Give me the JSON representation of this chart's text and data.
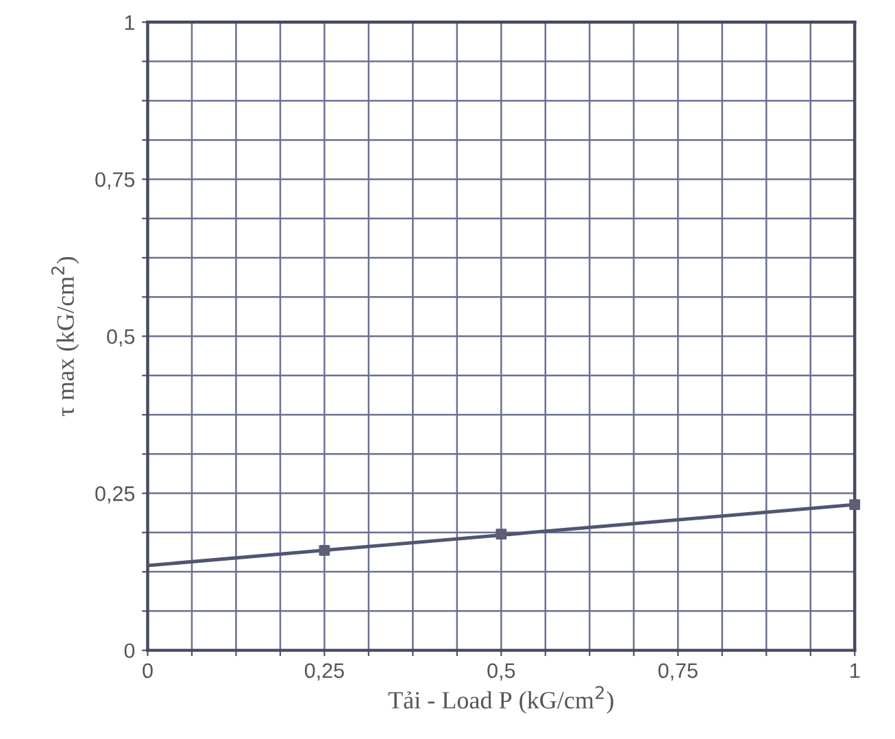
{
  "chart_data": {
    "type": "scatter",
    "xlabel": "Tải - Load P (kG/cm$^{2}$)",
    "ylabel": "τ max (kG/cm$^{2}$)",
    "xlim": [
      0,
      1
    ],
    "ylim": [
      0,
      1
    ],
    "xticks": [
      {
        "value": 0,
        "label": "0"
      },
      {
        "value": 0.0625,
        "label": null
      },
      {
        "value": 0.125,
        "label": null
      },
      {
        "value": 0.1875,
        "label": null
      },
      {
        "value": 0.25,
        "label": "0,25"
      },
      {
        "value": 0.3125,
        "label": null
      },
      {
        "value": 0.375,
        "label": null
      },
      {
        "value": 0.4375,
        "label": null
      },
      {
        "value": 0.5,
        "label": "0,5"
      },
      {
        "value": 0.5625,
        "label": null
      },
      {
        "value": 0.625,
        "label": null
      },
      {
        "value": 0.6875,
        "label": null
      },
      {
        "value": 0.75,
        "label": "0,75"
      },
      {
        "value": 0.8125,
        "label": null
      },
      {
        "value": 0.875,
        "label": null
      },
      {
        "value": 0.9375,
        "label": null
      },
      {
        "value": 1,
        "label": "1"
      }
    ],
    "yticks": [
      {
        "value": 0,
        "label": "0"
      },
      {
        "value": 0.0625,
        "label": null
      },
      {
        "value": 0.125,
        "label": null
      },
      {
        "value": 0.1875,
        "label": null
      },
      {
        "value": 0.25,
        "label": "0,25"
      },
      {
        "value": 0.3125,
        "label": null
      },
      {
        "value": 0.375,
        "label": null
      },
      {
        "value": 0.4375,
        "label": null
      },
      {
        "value": 0.5,
        "label": "0,5"
      },
      {
        "value": 0.5625,
        "label": null
      },
      {
        "value": 0.625,
        "label": null
      },
      {
        "value": 0.6875,
        "label": null
      },
      {
        "value": 0.75,
        "label": "0,75"
      },
      {
        "value": 0.8125,
        "label": null
      },
      {
        "value": 0.875,
        "label": null
      },
      {
        "value": 0.9375,
        "label": null
      },
      {
        "value": 1,
        "label": "1"
      }
    ],
    "grid": true,
    "marker": "square",
    "series": [
      {
        "color": "#5b5f78",
        "x": [
          0.25,
          0.5,
          1
        ],
        "values": [
          0.159,
          0.185,
          0.232
        ]
      },
      {
        "type": "line",
        "color": "#4f5670",
        "x": [
          0,
          1
        ],
        "values": [
          0.135,
          0.232
        ],
        "marker": "none",
        "line_style": "solid"
      }
    ]
  }
}
